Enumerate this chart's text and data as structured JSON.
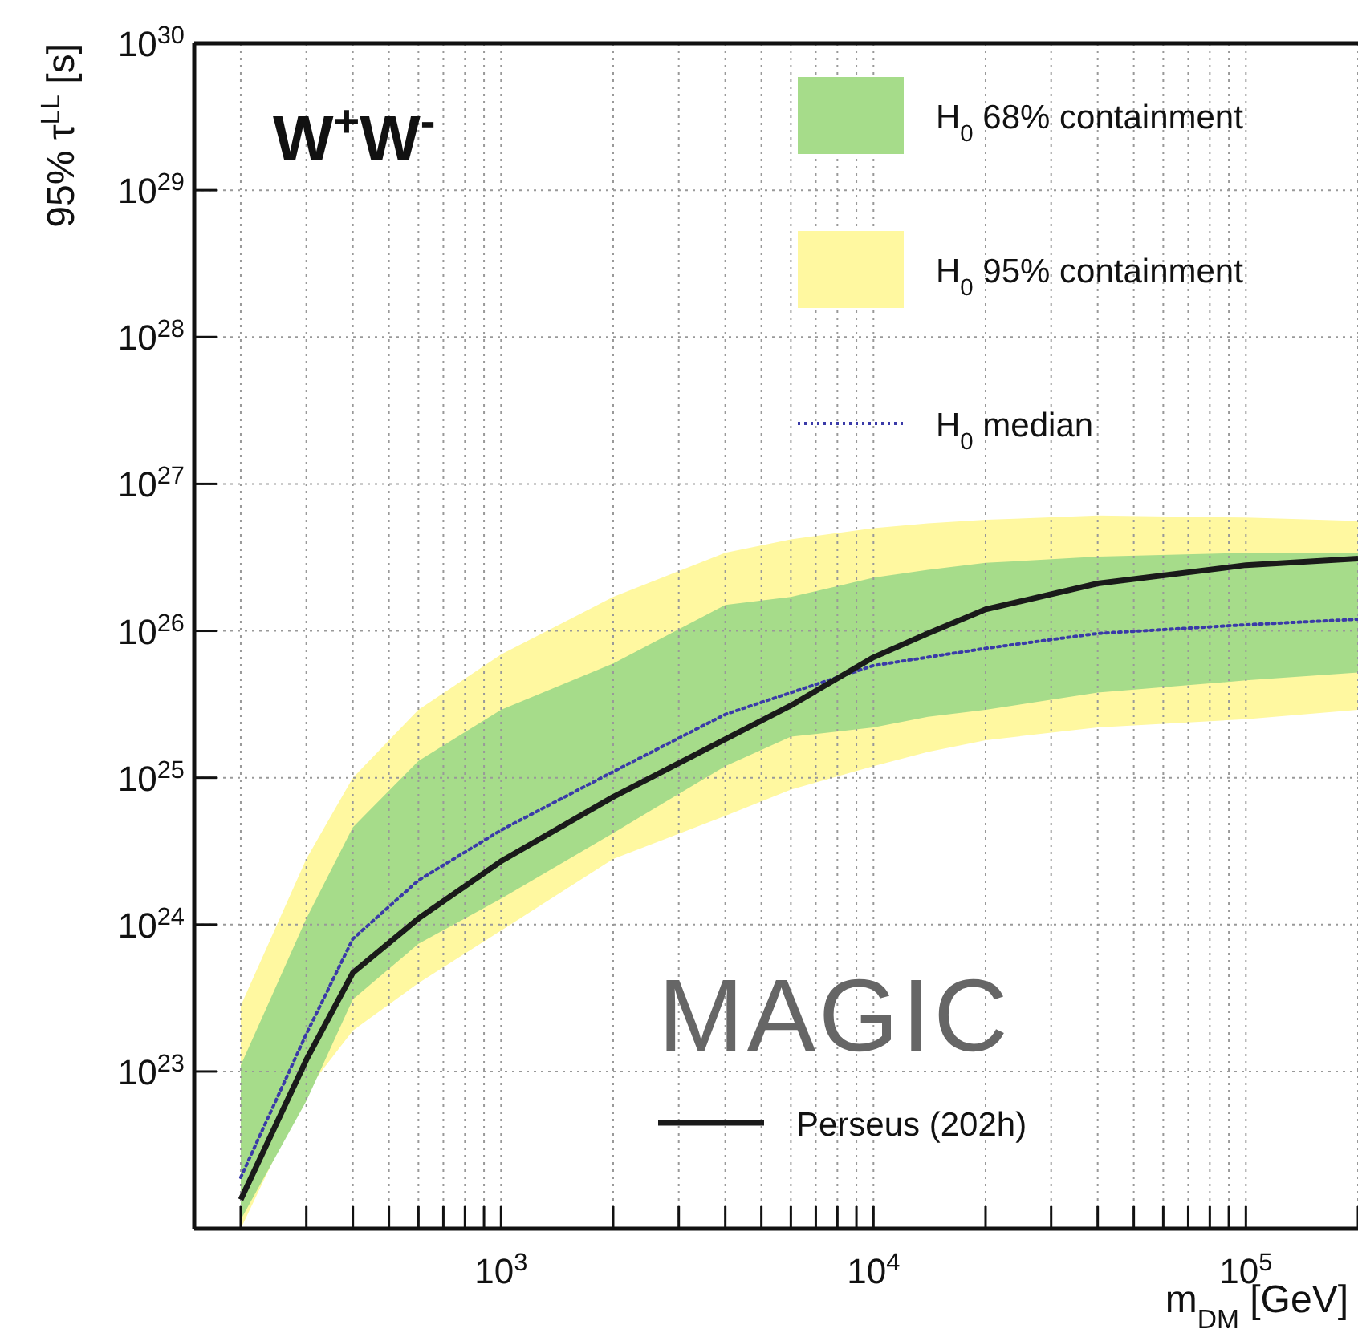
{
  "chart_data": {
    "type": "line",
    "xlabel": "m$_{DM}$ [GeV]",
    "ylabel": "95% τ$^{LL}$ [s]",
    "log": "xy",
    "grid": true,
    "legend": "top right",
    "xlim": [
      150,
      200000
    ],
    "ylim": [
      8.5e+21,
      1e+30
    ],
    "xticks": [
      {
        "value": 200,
        "label": null
      },
      {
        "value": 300,
        "label": null
      },
      {
        "value": 400,
        "label": null
      },
      {
        "value": 500,
        "label": null
      },
      {
        "value": 600,
        "label": null
      },
      {
        "value": 700,
        "label": null
      },
      {
        "value": 800,
        "label": null
      },
      {
        "value": 900,
        "label": null
      },
      {
        "value": 1000,
        "label": "10$^{3}$"
      },
      {
        "value": 2000,
        "label": null
      },
      {
        "value": 3000,
        "label": null
      },
      {
        "value": 4000,
        "label": null
      },
      {
        "value": 5000,
        "label": null
      },
      {
        "value": 6000,
        "label": null
      },
      {
        "value": 7000,
        "label": null
      },
      {
        "value": 8000,
        "label": null
      },
      {
        "value": 9000,
        "label": null
      },
      {
        "value": 10000,
        "label": "10$^{4}$"
      },
      {
        "value": 20000,
        "label": null
      },
      {
        "value": 30000,
        "label": null
      },
      {
        "value": 40000,
        "label": null
      },
      {
        "value": 50000,
        "label": null
      },
      {
        "value": 60000,
        "label": null
      },
      {
        "value": 70000,
        "label": null
      },
      {
        "value": 80000,
        "label": null
      },
      {
        "value": 90000,
        "label": null
      },
      {
        "value": 100000,
        "label": "10$^{5}$"
      },
      {
        "value": 200000,
        "label": null
      }
    ],
    "yticks": [
      {
        "value": 1e+23,
        "label": "10$^{23}$"
      },
      {
        "value": 1e+24,
        "label": "10$^{24}$"
      },
      {
        "value": 1e+25,
        "label": "10$^{25}$"
      },
      {
        "value": 1e+26,
        "label": "10$^{26}$"
      },
      {
        "value": 1e+27,
        "label": "10$^{27}$"
      },
      {
        "value": 1e+28,
        "label": "10$^{28}$"
      },
      {
        "value": 1e+29,
        "label": "10$^{29}$"
      },
      {
        "value": 1e+30,
        "label": "10$^{30}$"
      }
    ],
    "series": [
      {
        "name": "H$_{0}$ 95% containment",
        "color": "#fff8a0",
        "x": [
          200,
          300,
          400,
          600,
          1000,
          2000,
          4000,
          6000,
          10000,
          14000,
          20000,
          40000,
          100000,
          200000
        ],
        "values": [
          null,
          null,
          null,
          null,
          null,
          null,
          null,
          null,
          null,
          null,
          null,
          null,
          null,
          null
        ],
        "lower": [
          8.5e+21,
          7.4e+22,
          1.9e+23,
          4e+23,
          9.1e+23,
          2.8e+24,
          5.5e+24,
          8.3e+24,
          1.2e+25,
          1.5e+25,
          1.8e+25,
          2.2e+25,
          2.5e+25,
          2.9e+25
        ],
        "upper": [
          2.8e+23,
          2.8e+24,
          1e+25,
          2.9e+25,
          6.9e+25,
          1.7e+26,
          3.4e+26,
          4.2e+26,
          5e+26,
          5.4e+26,
          5.7e+26,
          6.1e+26,
          5.9e+26,
          5.6e+26
        ]
      },
      {
        "name": "H$_{0}$ 68% containment",
        "color": "#a6dc8a",
        "x": [
          200,
          300,
          400,
          600,
          1000,
          2000,
          4000,
          6000,
          10000,
          14000,
          20000,
          40000,
          100000,
          200000
        ],
        "values": [
          null,
          null,
          null,
          null,
          null,
          null,
          null,
          null,
          null,
          null,
          null,
          null,
          null,
          null
        ],
        "lower": [
          9.8e+21,
          6.3e+22,
          3.1e+23,
          7.4e+23,
          1.5e+24,
          4.2e+24,
          1.2e+25,
          1.9e+25,
          2.2e+25,
          2.6e+25,
          2.9e+25,
          3.8e+25,
          4.6e+25,
          5.2e+25
        ],
        "upper": [
          1.1e+23,
          1.1e+24,
          4.6e+24,
          1.3e+25,
          2.9e+25,
          6e+25,
          1.5e+26,
          1.7e+26,
          2.3e+26,
          2.6e+26,
          2.9e+26,
          3.2e+26,
          3.4e+26,
          3.4e+26
        ]
      },
      {
        "name": "H$_{0}$ median",
        "color": "#3a3aa8",
        "line_style": "dotted",
        "x": [
          200,
          300,
          400,
          600,
          1000,
          2000,
          4000,
          6000,
          10000,
          20000,
          40000,
          100000,
          200000
        ],
        "values": [
          1.9e+22,
          1.8e+23,
          8e+23,
          2e+24,
          4.4e+24,
          1.1e+25,
          2.7e+25,
          3.8e+25,
          5.8e+25,
          7.6e+25,
          9.6e+25,
          1.1e+26,
          1.2e+26
        ]
      },
      {
        "name": "Perseus (202h)",
        "color": "#1a1a1a",
        "line_style": "solid",
        "x": [
          200,
          300,
          400,
          600,
          1000,
          2000,
          6000,
          10000,
          14000,
          20000,
          40000,
          100000,
          200000
        ],
        "values": [
          1.34e+22,
          1.2e+23,
          4.7e+23,
          1.1e+24,
          2.7e+24,
          7.4e+24,
          3.1e+25,
          6.6e+25,
          9.6e+25,
          1.4e+26,
          2.1e+26,
          2.8e+26,
          3.1e+26
        ]
      }
    ],
    "annotations": [
      "W$^{+}$W$^{-}$",
      "MAGIC"
    ]
  }
}
